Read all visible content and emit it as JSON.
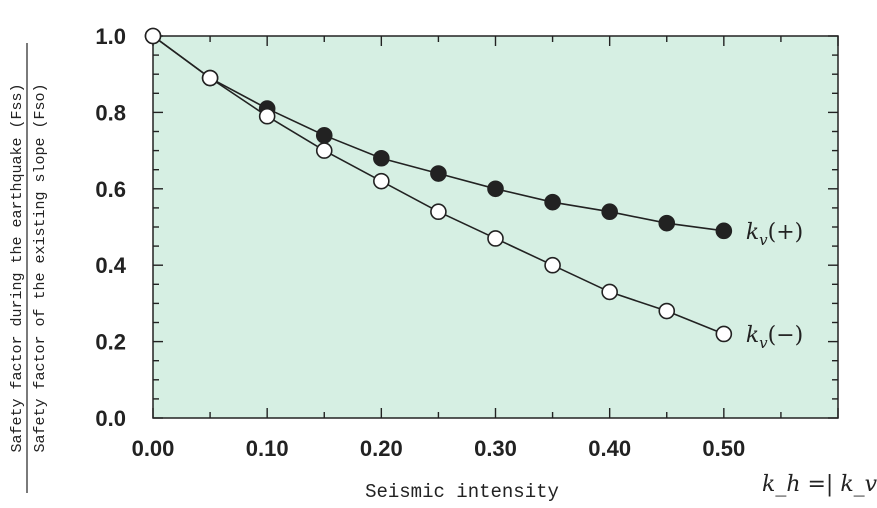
{
  "chart_data": {
    "type": "line",
    "x": [
      0.0,
      0.05,
      0.1,
      0.15,
      0.2,
      0.25,
      0.3,
      0.35,
      0.4,
      0.45,
      0.5
    ],
    "xlim": [
      0.0,
      0.6
    ],
    "ylim": [
      0.0,
      1.0
    ],
    "xticks": [
      0.0,
      0.1,
      0.2,
      0.3,
      0.4,
      0.5
    ],
    "xtick_labels": [
      "0.00",
      "0.10",
      "0.20",
      "0.30",
      "0.40",
      "0.50"
    ],
    "yticks": [
      0.0,
      0.2,
      0.4,
      0.6,
      0.8,
      1.0
    ],
    "ytick_labels": [
      "0.0",
      "0.2",
      "0.4",
      "0.6",
      "0.8",
      "1.0"
    ],
    "xlabel": "Seismic intensity",
    "xlabel_formula": "k_h =| k_v |",
    "ylabel_numerator": "Safety factor during the earthquake (Fss)",
    "ylabel_denominator": "Safety factor of the existing slope (Fso)",
    "plot_background": "#d6efe3",
    "series": [
      {
        "name": "k_v(+)",
        "label_main": "k",
        "label_sub": "v",
        "label_suffix": "(+)",
        "marker": "filled",
        "values": [
          1.0,
          0.89,
          0.81,
          0.74,
          0.68,
          0.64,
          0.6,
          0.565,
          0.54,
          0.51,
          0.49
        ]
      },
      {
        "name": "k_v(−)",
        "label_main": "k",
        "label_sub": "v",
        "label_suffix": "(−)",
        "marker": "open",
        "values": [
          1.0,
          0.89,
          0.79,
          0.7,
          0.62,
          0.54,
          0.47,
          0.4,
          0.33,
          0.28,
          0.22
        ]
      }
    ],
    "grid": false
  }
}
